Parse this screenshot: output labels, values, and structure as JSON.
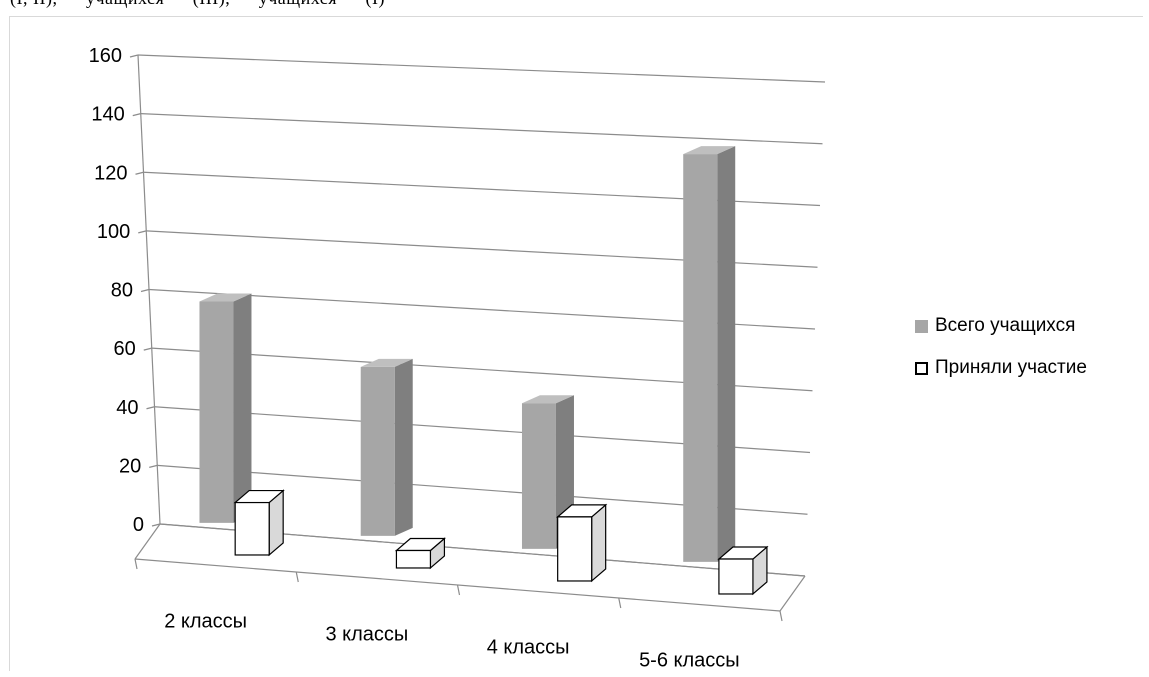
{
  "top_strip_text": "(I, II), — учащихся — (III), — учащихся — (I)",
  "chart_data": {
    "type": "bar",
    "categories": [
      "2 классы",
      "3 классы",
      "4 классы",
      "5-6 классы"
    ],
    "series": [
      {
        "name": "Всего учащихся",
        "values": [
          76,
          58,
          50,
          140
        ],
        "color": "#a6a6a6"
      },
      {
        "name": "Приняли участие",
        "values": [
          18,
          6,
          22,
          12
        ],
        "color": "#ffffff"
      }
    ],
    "ylim": [
      0,
      160
    ],
    "yticks": [
      "0",
      "20",
      "40",
      "60",
      "80",
      "100",
      "120",
      "140",
      "160"
    ],
    "grid": true,
    "legend_position": "right",
    "title": "",
    "xlabel": "",
    "ylabel": ""
  }
}
